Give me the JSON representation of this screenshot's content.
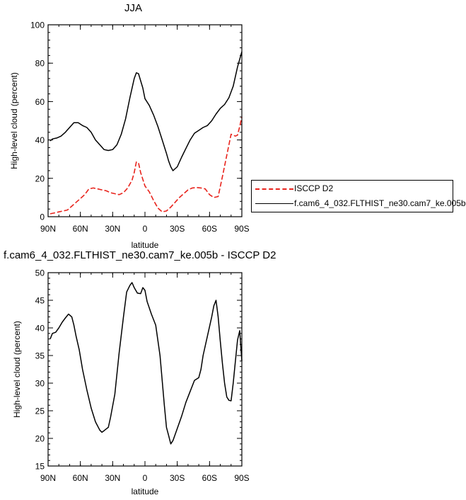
{
  "chart_data": [
    {
      "type": "line",
      "title": "JJA",
      "xlabel": "latitude",
      "ylabel": "High-level cloud (percent)",
      "xlim": [
        90,
        -90
      ],
      "ylim": [
        0,
        100
      ],
      "xticks": [
        90,
        60,
        30,
        0,
        -30,
        -60,
        -90
      ],
      "xtick_labels": [
        "90N",
        "60N",
        "30N",
        "0",
        "30S",
        "60S",
        "90S"
      ],
      "yticks": [
        0,
        20,
        40,
        60,
        80,
        100
      ],
      "ytick_labels": [
        "0",
        "20",
        "40",
        "60",
        "80",
        "100"
      ],
      "legend_position": "right",
      "series": [
        {
          "name": "ISCCP D2",
          "color": "#e8231c",
          "dash": "dashed",
          "x": [
            88,
            84,
            80,
            76,
            72,
            68,
            64,
            60,
            56,
            52,
            48,
            44,
            40,
            36,
            32,
            28,
            24,
            20,
            16,
            12,
            10,
            8,
            6,
            4,
            0,
            -4,
            -8,
            -12,
            -16,
            -20,
            -24,
            -28,
            -32,
            -36,
            -40,
            -44,
            -48,
            -52,
            -56,
            -60,
            -64,
            -68,
            -72,
            -76,
            -80,
            -84,
            -86,
            -88,
            -90
          ],
          "values": [
            1.5,
            2,
            2.5,
            3,
            3.5,
            5.5,
            7.5,
            9.5,
            11.5,
            14.5,
            15,
            14.5,
            14,
            13.5,
            12.5,
            12,
            11.5,
            12.5,
            15,
            19,
            23,
            28.5,
            28,
            23,
            16,
            13,
            8.5,
            4.5,
            2.5,
            3,
            5,
            7.5,
            10,
            12,
            14,
            15,
            15.2,
            15,
            14.5,
            11.5,
            10,
            10.5,
            21,
            32,
            43,
            42,
            42.5,
            47,
            52
          ]
        },
        {
          "name": "f.cam6_4_032.FLTHIST_ne30.cam7_ke.005b",
          "color": "#000000",
          "dash": "solid",
          "x": [
            88,
            86,
            82,
            78,
            74,
            70,
            66,
            62,
            58,
            54,
            50,
            46,
            42,
            38,
            34,
            30,
            26,
            22,
            18,
            14,
            10,
            8,
            6,
            2,
            0,
            -4,
            -8,
            -12,
            -16,
            -20,
            -22,
            -24,
            -26,
            -30,
            -34,
            -38,
            -42,
            -46,
            -50,
            -54,
            -58,
            -62,
            -66,
            -70,
            -74,
            -78,
            -82,
            -86,
            -90
          ],
          "values": [
            39.5,
            40.5,
            41,
            42,
            44,
            46.5,
            49,
            49,
            47.5,
            46.5,
            44,
            40,
            37.5,
            35,
            34.5,
            35,
            37.5,
            43,
            51,
            62,
            72,
            75,
            74.5,
            67,
            61.5,
            58,
            53,
            47,
            40,
            33,
            29,
            26,
            24,
            26,
            31,
            35.5,
            40,
            43.5,
            45,
            46.5,
            47.5,
            50,
            53.5,
            56.5,
            58.5,
            62,
            68,
            78,
            86
          ]
        }
      ]
    },
    {
      "type": "line",
      "title": "f.cam6_4_032.FLTHIST_ne30.cam7_ke.005b - ISCCP D2",
      "xlabel": "latitude",
      "ylabel": "High-level cloud (percent)",
      "xlim": [
        90,
        -90
      ],
      "ylim": [
        15,
        50
      ],
      "xticks": [
        90,
        60,
        30,
        0,
        -30,
        -60,
        -90
      ],
      "xtick_labels": [
        "90N",
        "60N",
        "30N",
        "0",
        "30S",
        "60S",
        "90S"
      ],
      "yticks": [
        15,
        20,
        25,
        30,
        35,
        40,
        45,
        50
      ],
      "ytick_labels": [
        "15",
        "20",
        "25",
        "30",
        "35",
        "40",
        "45",
        "50"
      ],
      "series": [
        {
          "color": "#000000",
          "dash": "solid",
          "x": [
            88,
            86,
            83,
            80,
            77,
            74,
            71,
            68,
            66,
            64,
            61,
            58,
            54,
            50,
            46,
            42,
            40,
            38,
            36,
            34,
            32,
            28,
            24,
            20,
            17,
            14,
            12,
            10,
            7,
            4,
            2,
            0,
            -2,
            -6,
            -10,
            -14,
            -18,
            -20,
            -22,
            -24,
            -26,
            -30,
            -34,
            -38,
            -42,
            -46,
            -50,
            -52,
            -54,
            -58,
            -62,
            -64,
            -66,
            -68,
            -70,
            -72,
            -74,
            -76,
            -78,
            -80,
            -82,
            -84,
            -86,
            -88,
            -90
          ],
          "values": [
            38,
            39,
            39.2,
            40,
            41,
            41.8,
            42.5,
            42,
            40.5,
            38.5,
            36,
            32.5,
            28.8,
            25.5,
            23,
            21.5,
            21.1,
            21.4,
            21.7,
            22,
            23.8,
            28,
            35.5,
            42,
            46.5,
            47.7,
            48.2,
            47.3,
            46.3,
            46.2,
            47.3,
            46.8,
            44.8,
            42.5,
            40.5,
            35,
            26,
            22,
            20.5,
            19,
            19.6,
            21.8,
            24,
            26.5,
            28.5,
            30.5,
            31,
            32.5,
            35,
            38.5,
            42,
            44,
            45,
            42,
            37.5,
            33.5,
            30,
            27.5,
            26.9,
            26.8,
            30,
            34,
            37.8,
            39.5,
            34
          ]
        }
      ]
    }
  ]
}
